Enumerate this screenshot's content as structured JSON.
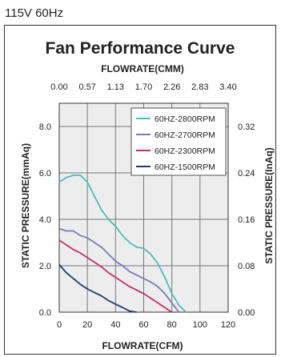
{
  "header": {
    "note": "115V 60Hz"
  },
  "chart_data": {
    "type": "line",
    "title": "Fan Performance Curve",
    "xlabel": "FLOWRATE(CFM)",
    "x2label": "FLOWRATE(CMM)",
    "ylabel": "STATIC PRESSURE(mmAq)",
    "y2label": "STATIC PRESSURE(InAq)",
    "xlim": [
      0,
      120
    ],
    "ylim": [
      0,
      9
    ],
    "x_ticks": [
      "0",
      "20",
      "40",
      "60",
      "80",
      "100",
      "120"
    ],
    "x_tick_values": [
      0,
      20,
      40,
      60,
      80,
      100,
      120
    ],
    "x2_ticks": [
      "0.00",
      "0.57",
      "1.13",
      "1.70",
      "2.26",
      "2.83",
      "3.40"
    ],
    "y_ticks": [
      "0.0",
      "2.0",
      "4.0",
      "6.0",
      "8.0"
    ],
    "y_tick_values": [
      0,
      2,
      4,
      6,
      8
    ],
    "y2_ticks": [
      "0.00",
      "0.08",
      "0.16",
      "0.24",
      "0.32"
    ],
    "grid": true,
    "legend_position": "top-right",
    "series": [
      {
        "name": "60HZ-2800RPM",
        "color": "#4bbfb2",
        "x": [
          0,
          5,
          10,
          15,
          20,
          25,
          30,
          35,
          40,
          45,
          50,
          55,
          60,
          65,
          70,
          75,
          80,
          85,
          90
        ],
        "y": [
          5.6,
          5.8,
          5.9,
          5.9,
          5.6,
          5.0,
          4.4,
          4.0,
          3.7,
          3.3,
          3.0,
          2.8,
          2.75,
          2.5,
          2.1,
          1.5,
          0.8,
          0.3,
          0.0
        ]
      },
      {
        "name": "60HZ-2700RPM",
        "color": "#7a7ab8",
        "x": [
          0,
          5,
          10,
          15,
          20,
          25,
          30,
          35,
          40,
          45,
          50,
          55,
          60,
          65,
          70,
          75,
          80,
          85
        ],
        "y": [
          3.6,
          3.5,
          3.5,
          3.3,
          3.2,
          3.0,
          2.8,
          2.5,
          2.2,
          2.0,
          1.75,
          1.6,
          1.45,
          1.3,
          1.1,
          0.8,
          0.4,
          0.0
        ]
      },
      {
        "name": "60HZ-2300RPM",
        "color": "#c0306a",
        "x": [
          0,
          5,
          10,
          15,
          20,
          25,
          30,
          35,
          40,
          45,
          50,
          55,
          60,
          65,
          70,
          75,
          80
        ],
        "y": [
          3.1,
          2.9,
          2.7,
          2.55,
          2.35,
          2.15,
          1.95,
          1.7,
          1.5,
          1.3,
          1.1,
          0.95,
          0.8,
          0.6,
          0.4,
          0.2,
          0.0
        ]
      },
      {
        "name": "60HZ-1500RPM",
        "color": "#1e3a6e",
        "x": [
          0,
          5,
          10,
          15,
          20,
          25,
          30,
          35,
          40,
          45,
          50,
          55
        ],
        "y": [
          2.05,
          1.7,
          1.45,
          1.2,
          1.0,
          0.85,
          0.7,
          0.5,
          0.35,
          0.2,
          0.05,
          0.0
        ]
      }
    ]
  }
}
